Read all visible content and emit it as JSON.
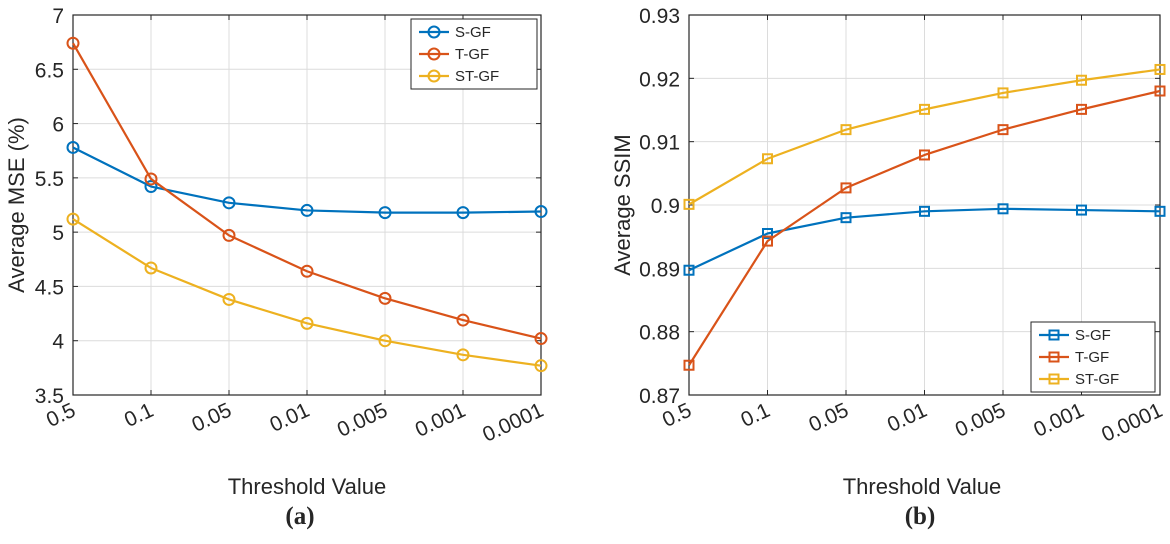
{
  "chart_data": [
    {
      "type": "line",
      "panel_label": "(a)",
      "categories": [
        "0.5",
        "0.1",
        "0.05",
        "0.01",
        "0.005",
        "0.001",
        "0.0001"
      ],
      "xlabel": "Threshold Value",
      "ylabel": "Average MSE (%)",
      "ylim": [
        3.5,
        7
      ],
      "yticks": [
        "3.5",
        "4",
        "4.5",
        "5",
        "5.5",
        "6",
        "6.5",
        "7"
      ],
      "ytick_values": [
        3.5,
        4,
        4.5,
        5,
        5.5,
        6,
        6.5,
        7
      ],
      "grid": true,
      "legend_position": "top-right",
      "marker": "circle",
      "series": [
        {
          "name": "S-GF",
          "color": "#0072bd",
          "values": [
            5.78,
            5.42,
            5.27,
            5.2,
            5.18,
            5.18,
            5.19
          ]
        },
        {
          "name": "T-GF",
          "color": "#d95319",
          "values": [
            6.74,
            5.49,
            4.97,
            4.64,
            4.39,
            4.19,
            4.02
          ]
        },
        {
          "name": "ST-GF",
          "color": "#edb120",
          "values": [
            5.12,
            4.67,
            4.38,
            4.16,
            4.0,
            3.87,
            3.77
          ]
        }
      ]
    },
    {
      "type": "line",
      "panel_label": "(b)",
      "categories": [
        "0.5",
        "0.1",
        "0.05",
        "0.01",
        "0.005",
        "0.001",
        "0.0001"
      ],
      "xlabel": "Threshold Value",
      "ylabel": "Average SSIM",
      "ylim": [
        0.87,
        0.93
      ],
      "yticks": [
        "0.87",
        "0.88",
        "0.89",
        "0.9",
        "0.91",
        "0.92",
        "0.93"
      ],
      "ytick_values": [
        0.87,
        0.88,
        0.89,
        0.9,
        0.91,
        0.92,
        0.93
      ],
      "grid": true,
      "legend_position": "bottom-right",
      "marker": "square",
      "series": [
        {
          "name": "S-GF",
          "color": "#0072bd",
          "values": [
            0.8897,
            0.8955,
            0.898,
            0.899,
            0.8994,
            0.8992,
            0.899
          ]
        },
        {
          "name": "T-GF",
          "color": "#d95319",
          "values": [
            0.8747,
            0.8943,
            0.9027,
            0.9079,
            0.9119,
            0.9151,
            0.918
          ]
        },
        {
          "name": "ST-GF",
          "color": "#edb120",
          "values": [
            0.9001,
            0.9073,
            0.9119,
            0.9151,
            0.9177,
            0.9197,
            0.9214
          ]
        }
      ]
    }
  ]
}
